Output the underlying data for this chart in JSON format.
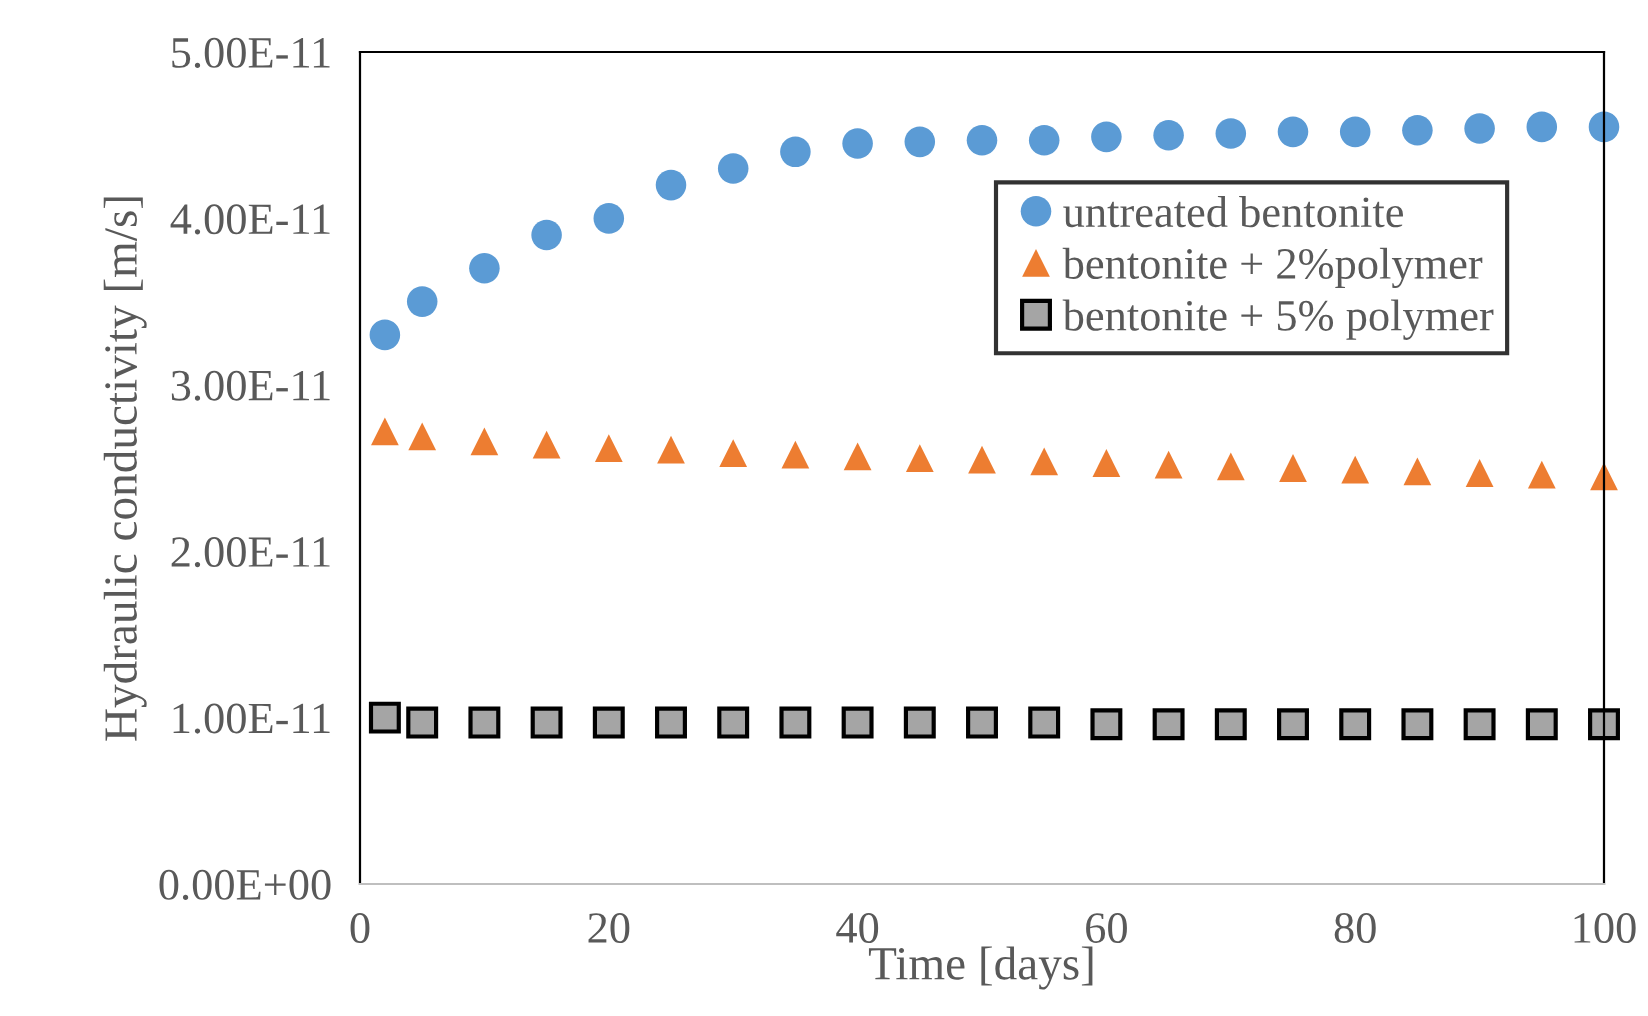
{
  "chart_data": {
    "type": "scatter",
    "xlabel": "Time [days]",
    "ylabel": "Hydraulic conductivity [m/s]",
    "x": [
      2,
      5,
      10,
      15,
      20,
      25,
      30,
      35,
      40,
      45,
      50,
      55,
      60,
      65,
      70,
      75,
      80,
      85,
      90,
      95,
      100
    ],
    "series": [
      {
        "name": "untreated bentonite",
        "color": "#5b9bd5",
        "marker": "circle",
        "values": [
          3.3e-11,
          3.5e-11,
          3.7e-11,
          3.9e-11,
          4e-11,
          4.2e-11,
          4.3e-11,
          4.4e-11,
          4.45e-11,
          4.46e-11,
          4.47e-11,
          4.47e-11,
          4.49e-11,
          4.5e-11,
          4.51e-11,
          4.52e-11,
          4.52e-11,
          4.53e-11,
          4.54e-11,
          4.55e-11,
          4.55e-11
        ]
      },
      {
        "name": "bentonite + 2%polymer",
        "color": "#ed7d31",
        "marker": "triangle",
        "values": [
          2.72e-11,
          2.69e-11,
          2.66e-11,
          2.64e-11,
          2.62e-11,
          2.61e-11,
          2.59e-11,
          2.58e-11,
          2.57e-11,
          2.56e-11,
          2.55e-11,
          2.54e-11,
          2.53e-11,
          2.52e-11,
          2.51e-11,
          2.5e-11,
          2.49e-11,
          2.48e-11,
          2.47e-11,
          2.46e-11,
          2.45e-11
        ]
      },
      {
        "name": "bentonite + 5% polymer",
        "color": "#a5a5a5",
        "marker": "square",
        "values": [
          1e-11,
          9.7e-12,
          9.7e-12,
          9.7e-12,
          9.7e-12,
          9.7e-12,
          9.7e-12,
          9.7e-12,
          9.7e-12,
          9.7e-12,
          9.7e-12,
          9.7e-12,
          9.6e-12,
          9.6e-12,
          9.6e-12,
          9.6e-12,
          9.6e-12,
          9.6e-12,
          9.6e-12,
          9.6e-12,
          9.6e-12
        ]
      }
    ],
    "xlim": [
      0,
      100
    ],
    "xticks": [
      0,
      20,
      40,
      60,
      80,
      100
    ],
    "ylim": [
      0,
      5e-11
    ],
    "yticks": [
      {
        "value": 0,
        "label": "0.00E+00"
      },
      {
        "value": 1e-11,
        "label": "1.00E-11"
      },
      {
        "value": 2e-11,
        "label": "2.00E-11"
      },
      {
        "value": 3e-11,
        "label": "3.00E-11"
      },
      {
        "value": 4e-11,
        "label": "4.00E-11"
      },
      {
        "value": 5e-11,
        "label": "5.00E-11"
      }
    ],
    "grid": false,
    "legend": "top right"
  }
}
